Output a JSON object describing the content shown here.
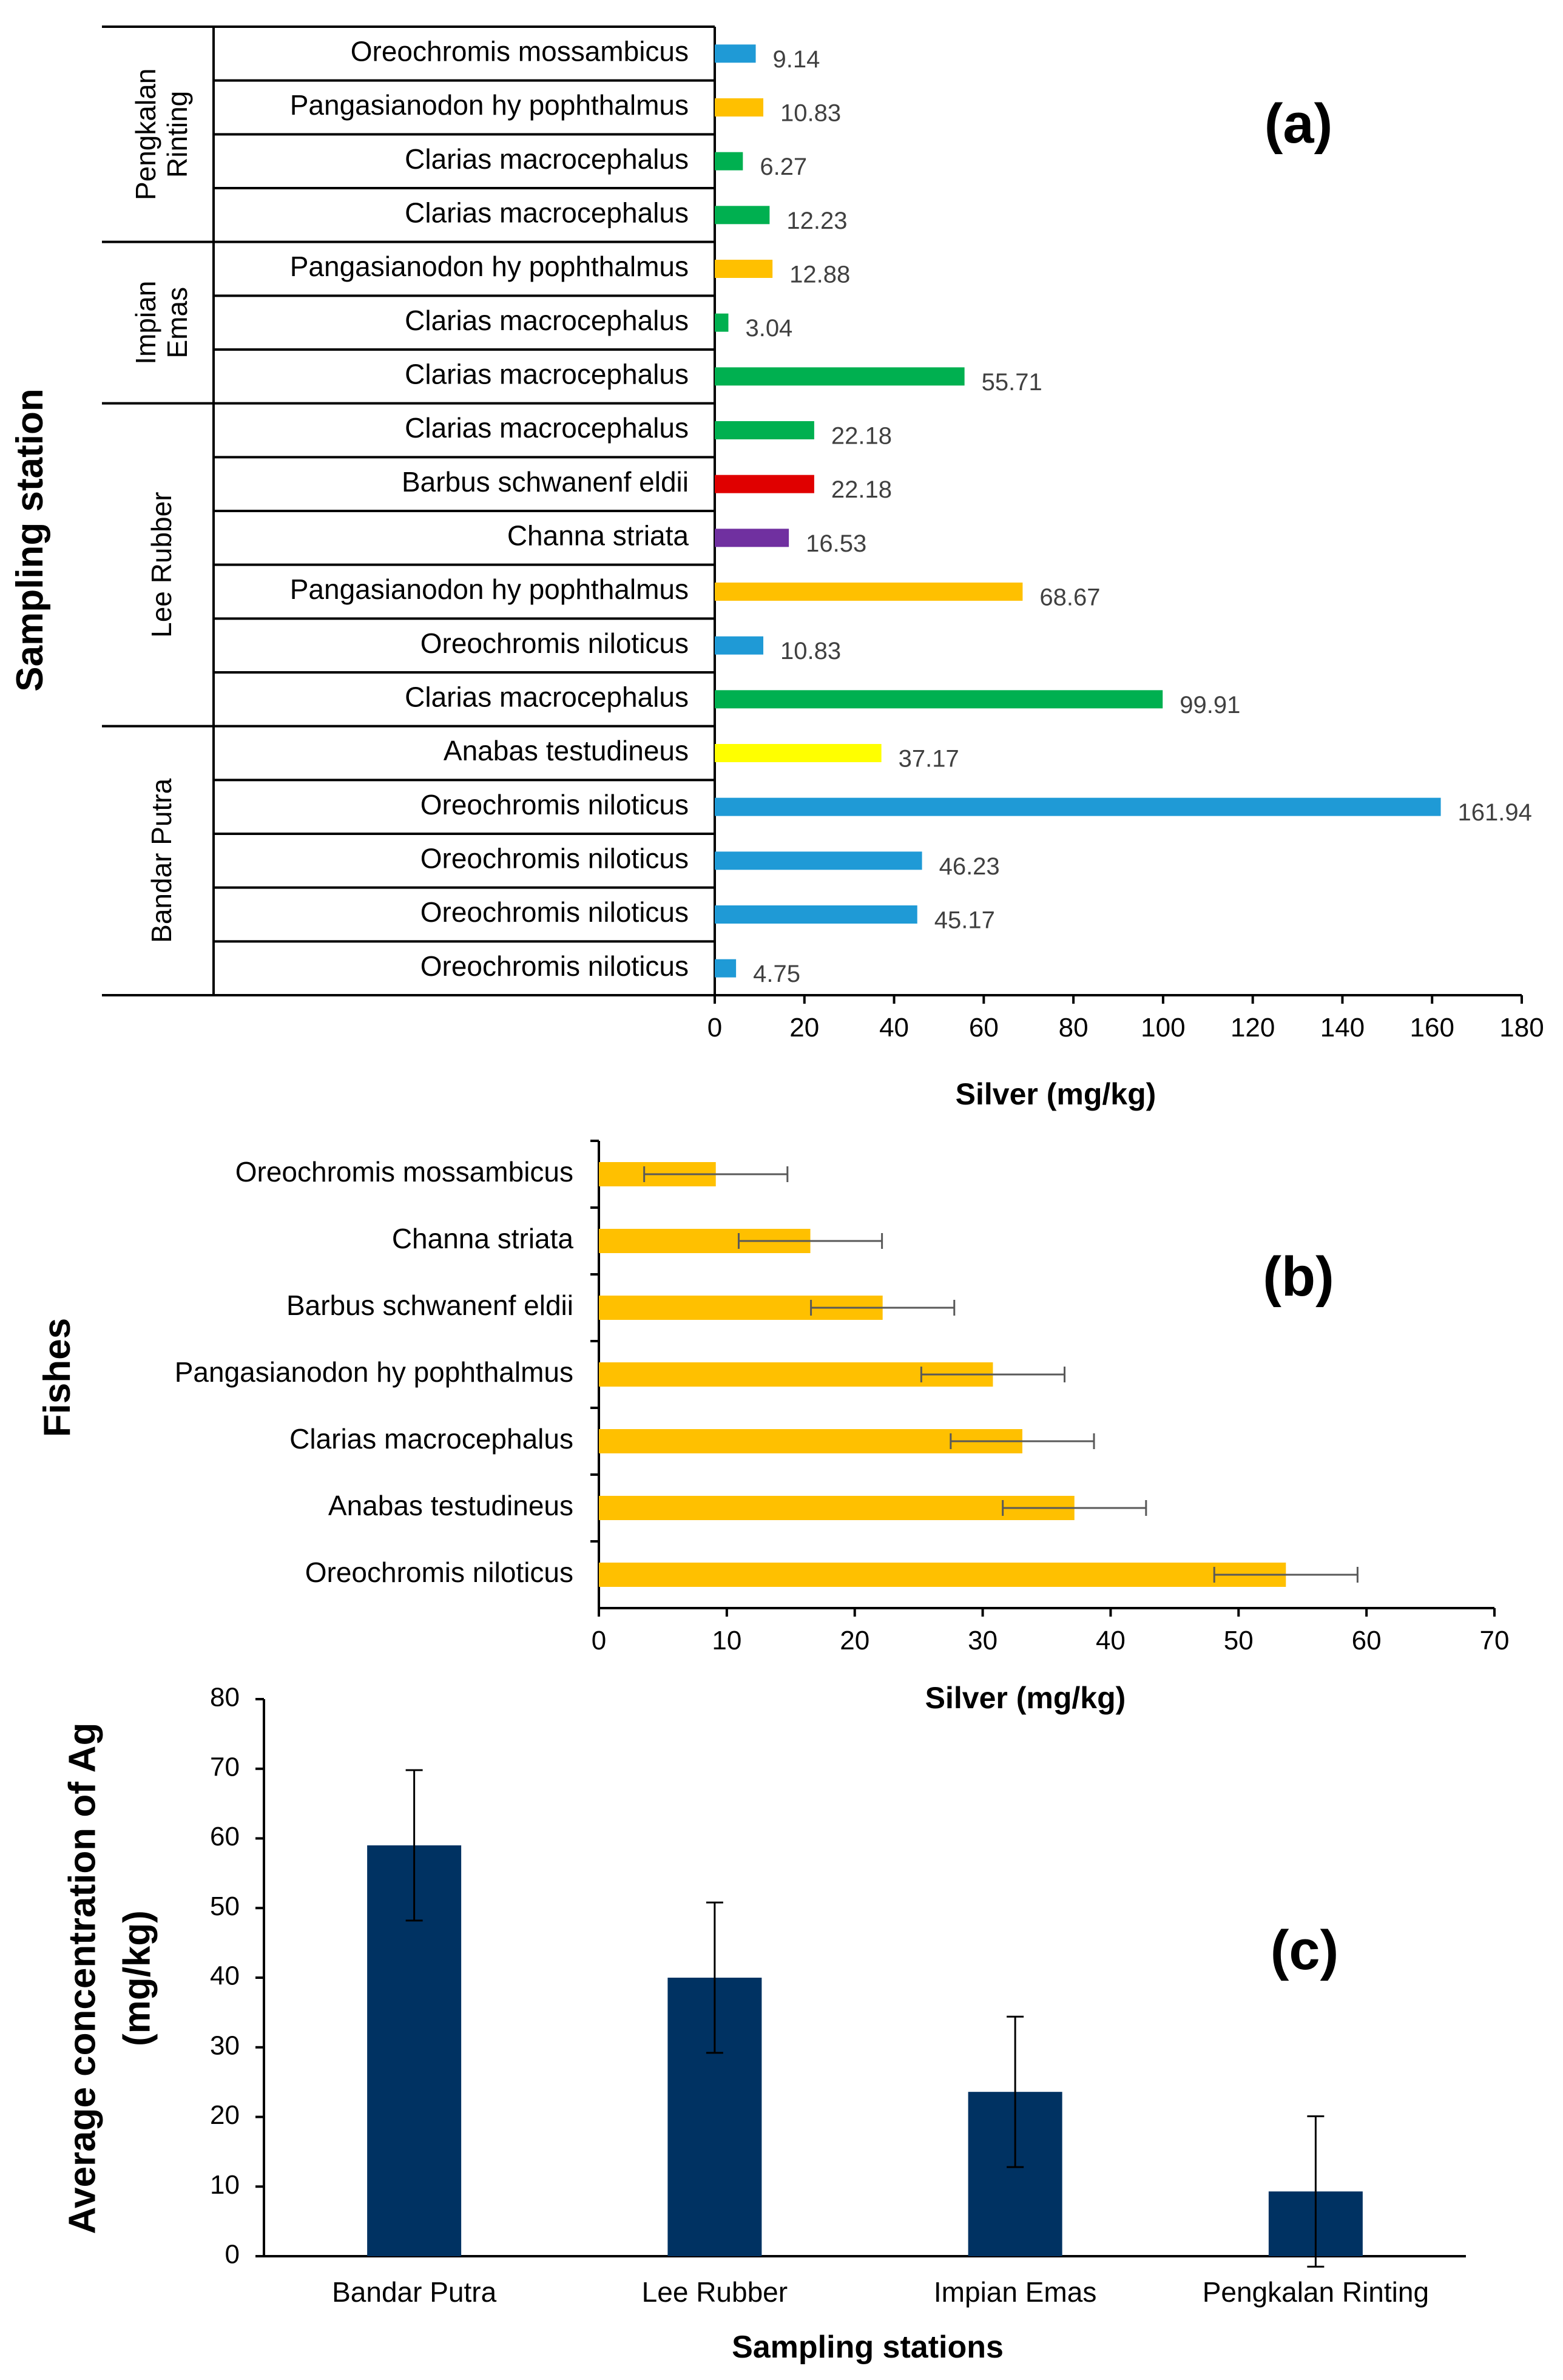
{
  "chart_data": [
    {
      "type": "bar",
      "orientation": "horizontal",
      "panel_label": "(a)",
      "ylabel": "Sampling station",
      "xlabel": "Silver (mg/kg)",
      "xlim": [
        0,
        180
      ],
      "xticks": [
        "0",
        "20",
        "40",
        "60",
        "80",
        "100",
        "120",
        "140",
        "160",
        "180"
      ],
      "groups": [
        {
          "name": "Pengkalan Rinting",
          "name_lines": [
            "Pengkalan",
            "Rinting"
          ]
        },
        {
          "name": "Impian Emas",
          "name_lines": [
            "Impian",
            "Emas"
          ]
        },
        {
          "name": "Lee Rubber",
          "name_lines": [
            "Lee Rubber"
          ]
        },
        {
          "name": "Bandar Putra",
          "name_lines": [
            "Bandar Putra"
          ]
        }
      ],
      "bars": [
        {
          "group": 0,
          "label": "Oreochromis mossambicus",
          "value": 9.14,
          "value_label": "9.14",
          "color": "#1f9ad6"
        },
        {
          "group": 0,
          "label": "Pangasianodon hy pophthalmus",
          "value": 10.83,
          "value_label": "10.83",
          "color": "#ffc000"
        },
        {
          "group": 0,
          "label": "Clarias macrocephalus",
          "value": 6.27,
          "value_label": "6.27",
          "color": "#00b050"
        },
        {
          "group": 0,
          "label": "Clarias macrocephalus",
          "value": 12.23,
          "value_label": "12.23",
          "color": "#00b050"
        },
        {
          "group": 1,
          "label": "Pangasianodon hy pophthalmus",
          "value": 12.88,
          "value_label": "12.88",
          "color": "#ffc000"
        },
        {
          "group": 1,
          "label": "Clarias macrocephalus",
          "value": 3.04,
          "value_label": "3.04",
          "color": "#00b050"
        },
        {
          "group": 1,
          "label": "Clarias macrocephalus",
          "value": 55.71,
          "value_label": "55.71",
          "color": "#00b050"
        },
        {
          "group": 2,
          "label": "Clarias macrocephalus",
          "value": 22.18,
          "value_label": "22.18",
          "color": "#00b050"
        },
        {
          "group": 2,
          "label": "Barbus schwanenf eldii",
          "value": 22.18,
          "value_label": "22.18",
          "color": "#e00000"
        },
        {
          "group": 2,
          "label": "Channa striata",
          "value": 16.53,
          "value_label": "16.53",
          "color": "#7030a0"
        },
        {
          "group": 2,
          "label": "Pangasianodon hy pophthalmus",
          "value": 68.67,
          "value_label": "68.67",
          "color": "#ffc000"
        },
        {
          "group": 2,
          "label": "Oreochromis niloticus",
          "value": 10.83,
          "value_label": "10.83",
          "color": "#1f9ad6"
        },
        {
          "group": 2,
          "label": "Clarias macrocephalus",
          "value": 99.91,
          "value_label": "99.91",
          "color": "#00b050"
        },
        {
          "group": 3,
          "label": "Anabas testudineus",
          "value": 37.17,
          "value_label": "37.17",
          "color": "#ffff00"
        },
        {
          "group": 3,
          "label": "Oreochromis niloticus",
          "value": 161.94,
          "value_label": "161.94",
          "color": "#1f9ad6"
        },
        {
          "group": 3,
          "label": "Oreochromis niloticus",
          "value": 46.23,
          "value_label": "46.23",
          "color": "#1f9ad6"
        },
        {
          "group": 3,
          "label": "Oreochromis niloticus",
          "value": 45.17,
          "value_label": "45.17",
          "color": "#1f9ad6"
        },
        {
          "group": 3,
          "label": "Oreochromis niloticus",
          "value": 4.75,
          "value_label": "4.75",
          "color": "#1f9ad6"
        }
      ]
    },
    {
      "type": "bar",
      "orientation": "horizontal",
      "panel_label": "(b)",
      "ylabel": "Fishes",
      "xlabel": "Silver (mg/kg)",
      "xlim": [
        0,
        70
      ],
      "xticks": [
        "0",
        "10",
        "20",
        "30",
        "40",
        "50",
        "60",
        "70"
      ],
      "bar_color": "#ffc000",
      "categories": [
        "Oreochromis mossambicus",
        "Channa striata",
        "Barbus schwanenf eldii",
        "Pangasianodon hy pophthalmus",
        "Clarias macrocephalus",
        "Anabas testudineus",
        "Oreochromis niloticus"
      ],
      "values": [
        9.14,
        16.53,
        22.18,
        30.8,
        33.1,
        37.17,
        53.7
      ],
      "errors": [
        5.6,
        5.6,
        5.6,
        5.6,
        5.6,
        5.6,
        5.6
      ]
    },
    {
      "type": "bar",
      "orientation": "vertical",
      "panel_label": "(c)",
      "ylabel_lines": [
        "Average concentration of Ag",
        "(mg/kg)"
      ],
      "xlabel": "Sampling stations",
      "ylim": [
        0,
        80
      ],
      "yticks": [
        "0",
        "10",
        "20",
        "30",
        "40",
        "50",
        "60",
        "70",
        "80"
      ],
      "bar_color": "#003262",
      "categories": [
        "Bandar Putra",
        "Lee Rubber",
        "Impian Emas",
        "Pengkalan Rinting"
      ],
      "values": [
        59.0,
        40.0,
        23.6,
        9.3
      ],
      "errors": [
        10.8,
        10.8,
        10.8,
        10.8
      ]
    }
  ]
}
